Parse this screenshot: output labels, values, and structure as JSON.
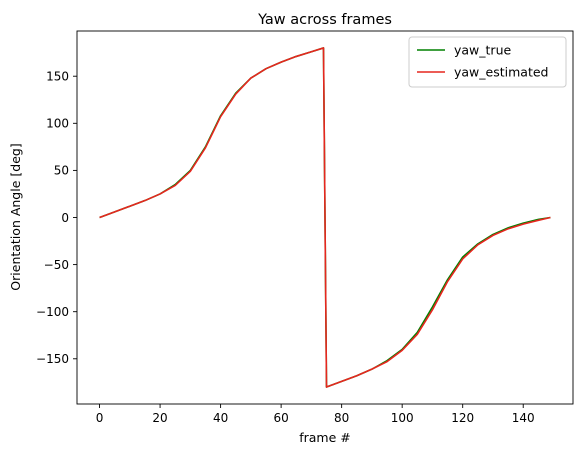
{
  "chart_data": {
    "type": "line",
    "title": "Yaw across frames",
    "xlabel": "frame #",
    "ylabel": "Orientation Angle [deg]",
    "xlim": [
      -7.45,
      156.45
    ],
    "ylim": [
      -198,
      198
    ],
    "xticks": [
      0,
      20,
      40,
      60,
      80,
      100,
      120,
      140
    ],
    "yticks": [
      -150,
      -100,
      -50,
      0,
      50,
      100,
      150
    ],
    "tick_labels_x": [
      "0",
      "20",
      "40",
      "60",
      "80",
      "100",
      "120",
      "140"
    ],
    "tick_labels_y": [
      "−150",
      "−100",
      "−50",
      "0",
      "50",
      "100",
      "150"
    ],
    "grid": false,
    "legend_position": "top-right",
    "x": [
      0,
      5,
      10,
      15,
      20,
      25,
      30,
      35,
      40,
      45,
      50,
      55,
      60,
      65,
      70,
      74,
      75,
      80,
      85,
      90,
      95,
      100,
      105,
      110,
      115,
      120,
      125,
      130,
      135,
      140,
      145,
      149
    ],
    "series": [
      {
        "name": "yaw_true",
        "color": "#008000",
        "values": [
          0,
          6,
          12,
          18,
          25,
          35,
          50,
          75,
          108,
          132,
          148,
          158,
          165,
          171,
          176,
          180,
          -180,
          -174,
          -168,
          -161,
          -152,
          -140,
          -122,
          -95,
          -66,
          -42,
          -28,
          -18,
          -11,
          -6,
          -2,
          0
        ]
      },
      {
        "name": "yaw_estimated",
        "color": "#e6261f",
        "values": [
          0,
          6,
          12,
          18,
          25,
          34,
          49,
          74,
          107,
          131,
          148,
          158,
          165,
          171,
          176,
          180,
          -180,
          -174,
          -168,
          -161,
          -153,
          -141,
          -124,
          -98,
          -68,
          -44,
          -29,
          -19,
          -12,
          -7,
          -3,
          0
        ]
      }
    ]
  }
}
